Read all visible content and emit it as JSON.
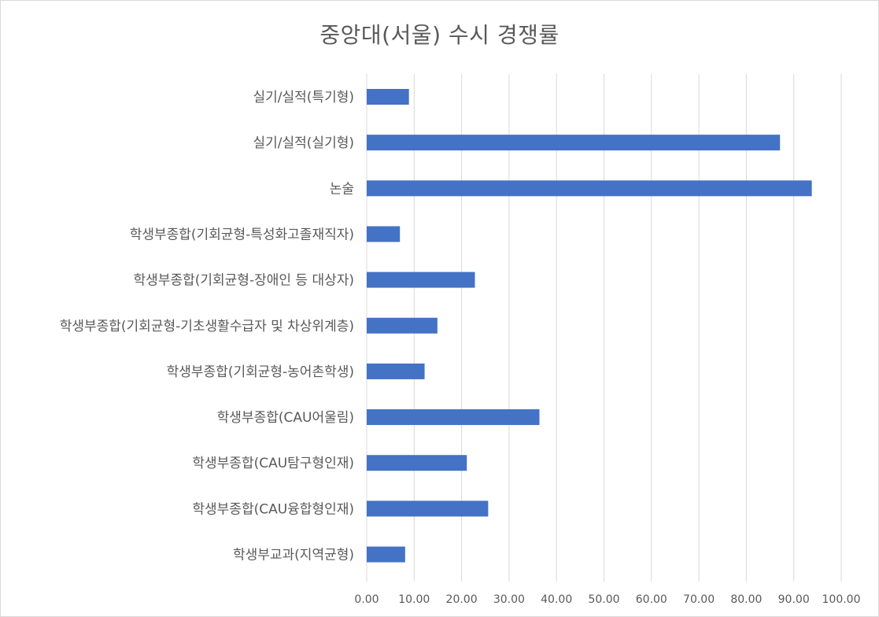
{
  "chart_data": {
    "type": "bar",
    "orientation": "horizontal",
    "title": "중앙대(서울) 수시 경쟁률",
    "xlabel": "",
    "ylabel": "",
    "xlim": [
      0,
      100
    ],
    "ticks": [
      "0.00",
      "10.00",
      "20.00",
      "30.00",
      "40.00",
      "50.00",
      "60.00",
      "70.00",
      "80.00",
      "90.00",
      "100.00"
    ],
    "grid": true,
    "bar_color": "#4472C4",
    "grid_color": "#d9d9d9",
    "categories": [
      "실기/실적(특기형)",
      "실기/실적(실기형)",
      "논술",
      "학생부종합(기회균형-특성화고졸재직자)",
      "학생부종합(기회균형-장애인 등 대상자)",
      "학생부종합(기회균형-기초생활수급자 및 차상위계층)",
      "학생부종합(기회균형-농어촌학생)",
      "학생부종합(CAU어울림)",
      "학생부종합(CAU탐구형인재)",
      "학생부종합(CAU융합형인재)",
      "학생부교과(지역균형)"
    ],
    "values": [
      8.9,
      87.1,
      93.8,
      7.0,
      22.8,
      14.9,
      12.2,
      36.4,
      21.1,
      25.6,
      8.1
    ]
  }
}
